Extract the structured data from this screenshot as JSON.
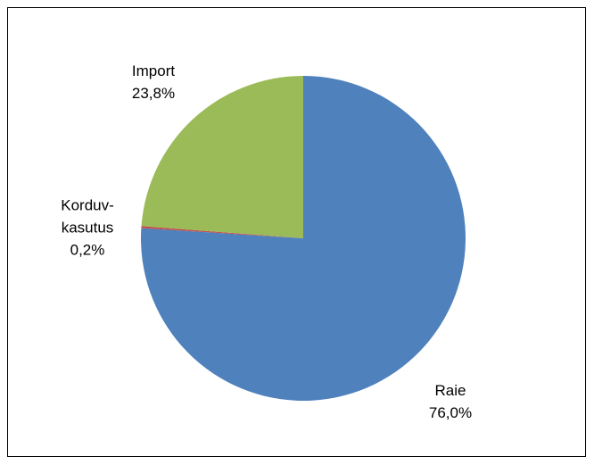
{
  "chart_data": {
    "type": "pie",
    "categories": [
      "Raie",
      "Korduv-kasutus",
      "Import"
    ],
    "values": [
      76.0,
      0.2,
      23.8
    ],
    "value_labels": [
      "76,0%",
      "0,2%",
      "23,8%"
    ],
    "colors": [
      "#4f81bd",
      "#c0504d",
      "#9bbb59"
    ]
  }
}
